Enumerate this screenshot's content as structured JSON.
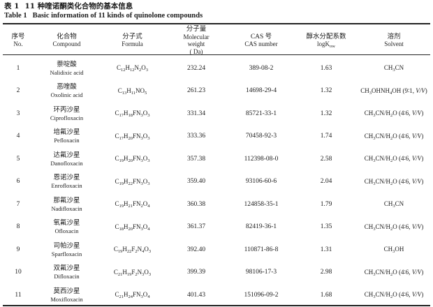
{
  "caption": {
    "zh_label": "表 1",
    "zh_title": "11 种喹诺酮类化合物的基本信息",
    "en_label": "Table 1",
    "en_title": "Basic information of 11 kinds of quinolone compounds"
  },
  "headers": [
    {
      "zh": "序号",
      "en": "No."
    },
    {
      "zh": "化合物",
      "en": "Compound"
    },
    {
      "zh": "分子式",
      "en": "Formula"
    },
    {
      "zh": "分子量",
      "en_lines": [
        "Molecular",
        "weight",
        "( Da)"
      ]
    },
    {
      "zh": "CAS 号",
      "en": "CAS number"
    },
    {
      "zh": "醇水分配系数",
      "en": "logK",
      "en_sub": "ow"
    },
    {
      "zh": "溶剂",
      "en": "Solvent"
    }
  ],
  "rows": [
    {
      "no": "1",
      "name_zh": "萘啶酸",
      "name_en": "Nalidixic acid",
      "formula": "C12H12N2O3",
      "mw": "232.24",
      "cas": "389-08-2",
      "logk": "1.63",
      "solvent": "CH3CN"
    },
    {
      "no": "2",
      "name_zh": "恶喹酸",
      "name_en": "Oxolinic acid",
      "formula": "C13H11NO5",
      "mw": "261.23",
      "cas": "14698-29-4",
      "logk": "1.32",
      "solvent": "CH3OHNH4OH (9∶1, V/V)"
    },
    {
      "no": "3",
      "name_zh": "环丙沙星",
      "name_en": "Ciprofloxacin",
      "formula": "C17H18FN3O3",
      "mw": "331.34",
      "cas": "85721-33-1",
      "logk": "1.32",
      "solvent": "CH3CN/H2O (4∶6, V/V)"
    },
    {
      "no": "4",
      "name_zh": "培氟沙星",
      "name_en": "Pefloxacin",
      "formula": "C17H20FN3O3",
      "mw": "333.36",
      "cas": "70458-92-3",
      "logk": "1.74",
      "solvent": "CH3CN/H2O (4∶6, V/V)"
    },
    {
      "no": "5",
      "name_zh": "达氟沙星",
      "name_en": "Danofloxacin",
      "formula": "C19H20FN3O3",
      "mw": "357.38",
      "cas": "112398-08-0",
      "logk": "2.58",
      "solvent": "CH3CN/H2O (4∶6, V/V)"
    },
    {
      "no": "6",
      "name_zh": "恩诺沙星",
      "name_en": "Enrofloxacin",
      "formula": "C19H22FN3O3",
      "mw": "359.40",
      "cas": "93106-60-6",
      "logk": "2.04",
      "solvent": "CH3CN/H2O (4∶6, V/V)"
    },
    {
      "no": "7",
      "name_zh": "那氟沙星",
      "name_en": "Nadifloxacin",
      "formula": "C19H21FN2O4",
      "mw": "360.38",
      "cas": "124858-35-1",
      "logk": "1.79",
      "solvent": "CH3CN"
    },
    {
      "no": "8",
      "name_zh": "氧氟沙星",
      "name_en": "Ofloxacin",
      "formula": "C18H20FN3O4",
      "mw": "361.37",
      "cas": "82419-36-1",
      "logk": "1.35",
      "solvent": "CH3CN/H2O (4∶6, V/V)"
    },
    {
      "no": "9",
      "name_zh": "司帕沙星",
      "name_en": "Sparfloxacin",
      "formula": "C19H22F2N4O3",
      "mw": "392.40",
      "cas": "110871-86-8",
      "logk": "1.31",
      "solvent": "CH3OH"
    },
    {
      "no": "10",
      "name_zh": "双氟沙星",
      "name_en": "Difloxacin",
      "formula": "C21H19F2N3O3",
      "mw": "399.39",
      "cas": "98106-17-3",
      "logk": "2.98",
      "solvent": "CH3CN/H2O (4∶6, V/V)"
    },
    {
      "no": "11",
      "name_zh": "莫西沙星",
      "name_en": "Moxifloxacin",
      "formula": "C21H24FN3O4",
      "mw": "401.43",
      "cas": "151096-09-2",
      "logk": "1.68",
      "solvent": "CH3CN/H2O (4∶6, V/V)"
    }
  ]
}
